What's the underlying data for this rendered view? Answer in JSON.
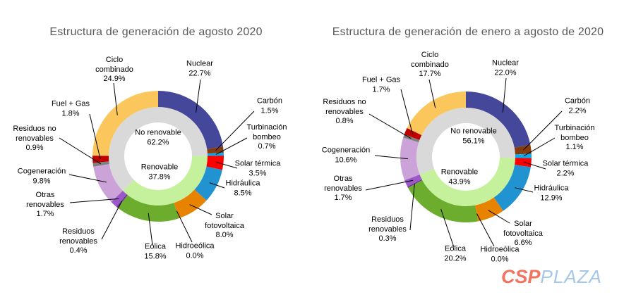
{
  "page": {
    "background": "#FFFFFF",
    "title_color": "#595959",
    "label_color": "#000000",
    "leader_line_color": "#000000"
  },
  "logo": {
    "primary": "CSP",
    "secondary": "PLAZA",
    "primary_color": "#F2735E",
    "secondary_color": "#A6C8E8"
  },
  "chart_data": [
    {
      "type": "donut",
      "title": "Estructura de generación de agosto 2020",
      "value_unit": "%",
      "legend_position": "none",
      "inner_ring": [
        {
          "name": "No renovable",
          "value": 62.2,
          "pct_label": "62.2%",
          "color": "#D9D9D9"
        },
        {
          "name": "Renovable",
          "value": 37.8,
          "pct_label": "37.8%",
          "color": "#C5F19C"
        }
      ],
      "outer_ring": [
        {
          "name": "Nuclear",
          "value": 22.7,
          "renewable": false,
          "color": "#45479B",
          "label_lines": [
            "Nuclear",
            "22.7%"
          ]
        },
        {
          "name": "Carbón",
          "value": 1.5,
          "renewable": false,
          "color": "#843C0C",
          "label_lines": [
            "Carbón",
            "1.5%"
          ]
        },
        {
          "name": "Turbinación bombeo",
          "value": 0.7,
          "renewable": false,
          "color": "#00AEEF",
          "label_lines": [
            "Turbinación",
            "bombeo",
            "0.7%"
          ]
        },
        {
          "name": "Solar térmica",
          "value": 3.5,
          "renewable": true,
          "color": "#FF0000",
          "label_lines": [
            "Solar térmica",
            "3.5%"
          ]
        },
        {
          "name": "Hidráulica",
          "value": 8.5,
          "renewable": true,
          "color": "#2093D0",
          "label_lines": [
            "Hidráulica",
            "8.5%"
          ]
        },
        {
          "name": "Solar fotovoltaica",
          "value": 8.0,
          "renewable": true,
          "color": "#E88300",
          "label_lines": [
            "Solar",
            "fotovoltaica",
            "8.0%"
          ]
        },
        {
          "name": "Hidroeólica",
          "value": 0.0,
          "renewable": true,
          "color": "#A9D18E",
          "label_lines": [
            "Hidroeólica",
            "0.0%"
          ]
        },
        {
          "name": "Eólica",
          "value": 15.8,
          "renewable": true,
          "color": "#6DAD2E",
          "label_lines": [
            "Eólica",
            "15.8%"
          ]
        },
        {
          "name": "Residuos renovables",
          "value": 0.4,
          "renewable": true,
          "color": "#7030A0",
          "label_lines": [
            "Residuos",
            "renovables",
            "0.4%"
          ]
        },
        {
          "name": "Otras renovables",
          "value": 1.7,
          "renewable": true,
          "color": "#9B59C8",
          "label_lines": [
            "Otras",
            "renovables",
            "1.7%"
          ]
        },
        {
          "name": "Cogeneración",
          "value": 9.8,
          "renewable": false,
          "color": "#CBA3D8",
          "label_lines": [
            "Cogeneración",
            "9.8%"
          ]
        },
        {
          "name": "Residuos no renovables",
          "value": 0.9,
          "renewable": false,
          "color": "#7F7F7F",
          "label_lines": [
            "Residuos no",
            "renovables",
            "0.9%"
          ]
        },
        {
          "name": "Fuel + Gas",
          "value": 1.8,
          "renewable": false,
          "color": "#C00000",
          "label_lines": [
            "Fuel + Gas",
            "1.8%"
          ]
        },
        {
          "name": "Ciclo combinado",
          "value": 24.9,
          "renewable": false,
          "color": "#FBC75D",
          "label_lines": [
            "Ciclo",
            "combinado",
            "24.9%"
          ]
        }
      ]
    },
    {
      "type": "donut",
      "title": "Estructura de generación de enero a agosto de 2020",
      "value_unit": "%",
      "legend_position": "none",
      "inner_ring": [
        {
          "name": "No renovable",
          "value": 56.1,
          "pct_label": "56.1%",
          "color": "#D9D9D9"
        },
        {
          "name": "Renovable",
          "value": 43.9,
          "pct_label": "43.9%",
          "color": "#C5F19C"
        }
      ],
      "outer_ring": [
        {
          "name": "Nuclear",
          "value": 22.0,
          "renewable": false,
          "color": "#45479B",
          "label_lines": [
            "Nuclear",
            "22.0%"
          ]
        },
        {
          "name": "Carbón",
          "value": 2.2,
          "renewable": false,
          "color": "#843C0C",
          "label_lines": [
            "Carbón",
            "2.2%"
          ]
        },
        {
          "name": "Turbinación bombeo",
          "value": 1.1,
          "renewable": false,
          "color": "#00AEEF",
          "label_lines": [
            "Turbinación",
            "bombeo",
            "1.1%"
          ]
        },
        {
          "name": "Solar térmica",
          "value": 2.2,
          "renewable": true,
          "color": "#FF0000",
          "label_lines": [
            "Solar térmica",
            "2.2%"
          ]
        },
        {
          "name": "Hidráulica",
          "value": 12.9,
          "renewable": true,
          "color": "#2093D0",
          "label_lines": [
            "Hidráulica",
            "12.9%"
          ]
        },
        {
          "name": "Solar fotovoltaica",
          "value": 6.6,
          "renewable": true,
          "color": "#E88300",
          "label_lines": [
            "Solar",
            "fotovoltaica",
            "6.6%"
          ]
        },
        {
          "name": "Hidroeólica",
          "value": 0.0,
          "renewable": true,
          "color": "#A9D18E",
          "label_lines": [
            "Hidroeólica",
            "0.0%"
          ]
        },
        {
          "name": "Eólica",
          "value": 20.2,
          "renewable": true,
          "color": "#6DAD2E",
          "label_lines": [
            "Eólica",
            "20.2%"
          ]
        },
        {
          "name": "Residuos renovables",
          "value": 0.3,
          "renewable": true,
          "color": "#7030A0",
          "label_lines": [
            "Residuos",
            "renovables",
            "0.3%"
          ]
        },
        {
          "name": "Otras renovables",
          "value": 1.7,
          "renewable": true,
          "color": "#9B59C8",
          "label_lines": [
            "Otras",
            "renovables",
            "1.7%"
          ]
        },
        {
          "name": "Cogeneración",
          "value": 10.6,
          "renewable": false,
          "color": "#CBA3D8",
          "label_lines": [
            "Cogeneración",
            "10.6%"
          ]
        },
        {
          "name": "Residuos no renovables",
          "value": 0.8,
          "renewable": false,
          "color": "#7F7F7F",
          "label_lines": [
            "Residuos no",
            "renovables",
            "0.8%"
          ]
        },
        {
          "name": "Fuel + Gas",
          "value": 1.7,
          "renewable": false,
          "color": "#C00000",
          "label_lines": [
            "Fuel + Gas",
            "1.7%"
          ]
        },
        {
          "name": "Ciclo combinado",
          "value": 17.7,
          "renewable": false,
          "color": "#FBC75D",
          "label_lines": [
            "Ciclo",
            "combinado",
            "17.7%"
          ]
        }
      ]
    }
  ]
}
